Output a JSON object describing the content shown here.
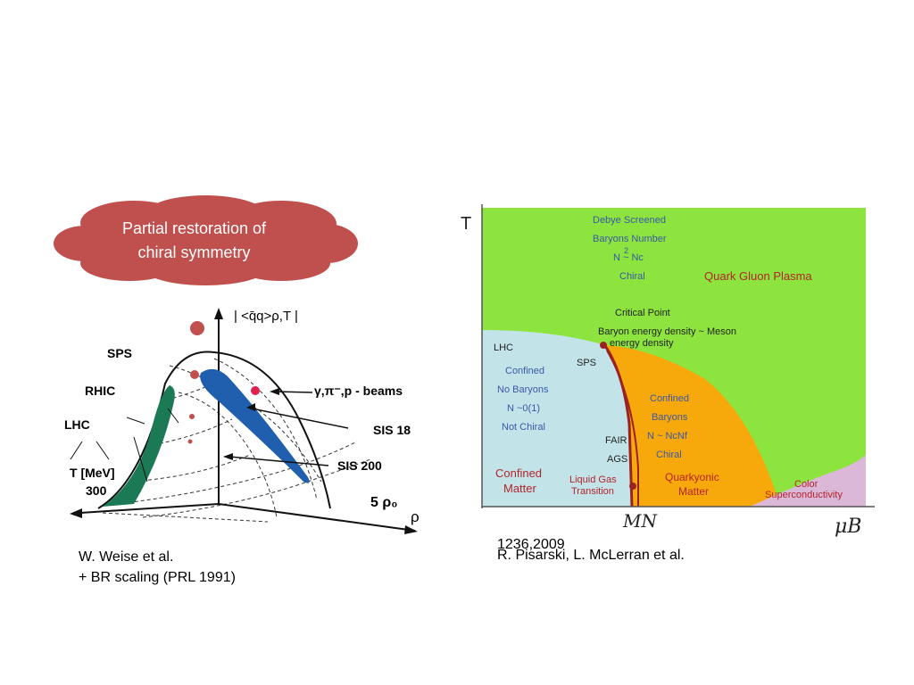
{
  "cloud": {
    "line1": "Partial restoration of",
    "line2": "chiral symmetry"
  },
  "left_diagram": {
    "axis_label": "| <q̄q>ρ,T |",
    "sps": "SPS",
    "rhic": "RHIC",
    "lhc": "LHC",
    "t_axis": "T [MeV]",
    "t_value": "300",
    "beams": "γ,π⁻,p - beams",
    "sis18": "SIS 18",
    "sis200": "SIS 200",
    "rho0": "5 ρ₀",
    "rho": "ρ"
  },
  "left_caption": {
    "line1": "W. Weise et al.",
    "line2": "+ BR scaling (PRL 1991)"
  },
  "phase_diagram": {
    "axis_t": "T",
    "axis_mub": "μB",
    "axis_mn": "MN",
    "qgp_lines": [
      "Debye Screened",
      "Baryons Number",
      "N  ~ Nc",
      "Chiral"
    ],
    "exponent": "2",
    "qgp": "Quark Gluon Plasma",
    "critical_point": "Critical Point",
    "baryon_energy": [
      "Baryon energy density ~ Meson",
      "energy density"
    ],
    "lhc": "LHC",
    "sps": "SPS",
    "confined_lines": [
      "Confined",
      "No Baryons",
      "N ~0(1)",
      "Not Chiral"
    ],
    "confined_matter": [
      "Confined",
      "Matter"
    ],
    "fair": "FAIR",
    "ags": "AGS",
    "liquid_gas": [
      "Liquid Gas",
      "Transition"
    ],
    "quarkyonic_lines": [
      "Confined",
      "Baryons",
      "N ~ NcNf",
      "Chiral"
    ],
    "quarkyonic_matter": [
      "Quarkyonic",
      "Matter"
    ],
    "color_sc": [
      "Color",
      "Superconductivity"
    ]
  },
  "date": "1236,2009",
  "right_caption": "R. Pisarski, L. McLerran et al.",
  "colors": {
    "cloud": "#c0504d",
    "qgp": "#8de43f",
    "confined": "#c2e4e9",
    "quarkyonic": "#f7a80a",
    "color_sc": "#dcb8d8"
  }
}
